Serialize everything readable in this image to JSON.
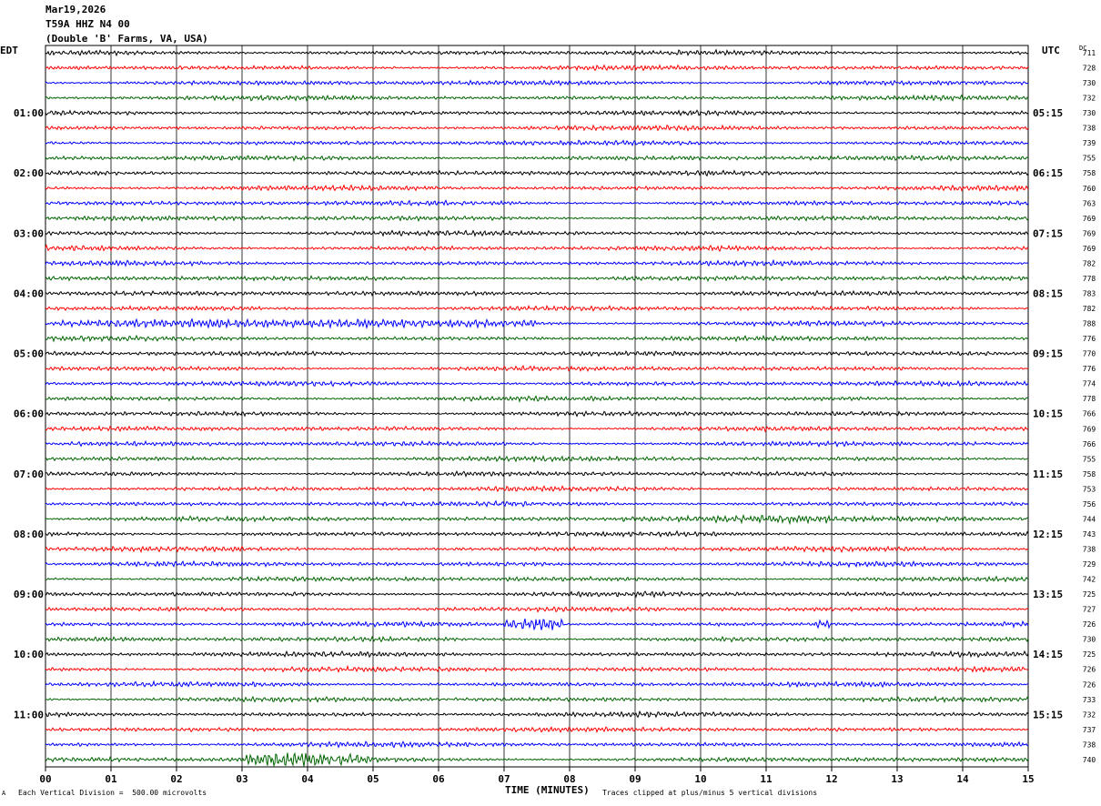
{
  "header": {
    "date": "Mar19,2026",
    "station": "T59A HHZ N4 00",
    "location": "(Double 'B' Farms, VA, USA)"
  },
  "tz": {
    "left": "EDT",
    "right": "UTC",
    "dc": "DC"
  },
  "footer": {
    "scale": "Each Vertical Division =  500.00 microvolts",
    "clip": "Traces clipped at plus/minus 5 vertical divisions",
    "corner": "A"
  },
  "chart_data": {
    "type": "line",
    "title": "",
    "xlabel": "TIME (MINUTES)",
    "ylabel": "",
    "x_ticks": [
      "00",
      "01",
      "02",
      "03",
      "04",
      "05",
      "06",
      "07",
      "08",
      "09",
      "10",
      "11",
      "12",
      "13",
      "14",
      "15"
    ],
    "xlim": [
      0,
      15
    ],
    "grid": true,
    "trace_colors": [
      "#000000",
      "#ff0000",
      "#0000ff",
      "#006400"
    ],
    "left_hour_labels": [
      "01:00",
      "02:00",
      "03:00",
      "04:00",
      "05:00",
      "06:00",
      "07:00",
      "08:00",
      "09:00",
      "10:00",
      "11:00"
    ],
    "right_hour_labels": [
      "05:15",
      "06:15",
      "07:15",
      "08:15",
      "09:15",
      "10:15",
      "11:15",
      "12:15",
      "13:15",
      "14:15",
      "15:15"
    ],
    "dc_offsets": [
      711,
      728,
      730,
      732,
      730,
      738,
      739,
      755,
      758,
      760,
      763,
      769,
      769,
      769,
      782,
      778,
      783,
      782,
      788,
      776,
      770,
      776,
      774,
      778,
      766,
      769,
      766,
      755,
      758,
      753,
      756,
      744,
      743,
      738,
      729,
      742,
      725,
      727,
      726,
      730,
      725,
      726,
      726,
      733,
      732,
      737,
      738,
      740
    ],
    "events": [
      {
        "trace": 38,
        "start_min": 7.0,
        "end_min": 7.9,
        "peak_min": 7.6,
        "amp": 3.0
      },
      {
        "trace": 38,
        "start_min": 11.7,
        "end_min": 12.0,
        "peak_min": 11.85,
        "amp": 1.6
      },
      {
        "trace": 47,
        "start_min": 3.0,
        "end_min": 5.0,
        "peak_min": 3.7,
        "amp": 3.0
      },
      {
        "trace": 31,
        "start_min": 8.7,
        "end_min": 12.0,
        "peak_min": 10.8,
        "amp": 1.4
      },
      {
        "trace": 18,
        "start_min": 0.2,
        "end_min": 7.5,
        "peak_min": 5.0,
        "amp": 1.3
      }
    ]
  }
}
